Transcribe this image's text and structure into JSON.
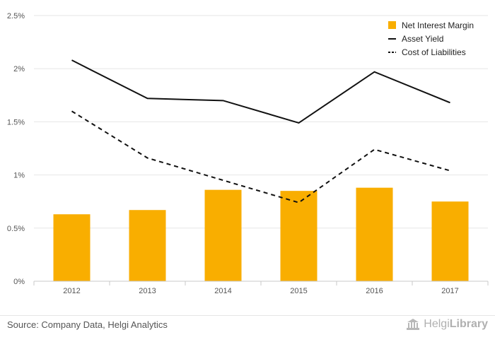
{
  "chart_data": {
    "type": "bar",
    "categories": [
      "2012",
      "2013",
      "2014",
      "2015",
      "2016",
      "2017"
    ],
    "series": [
      {
        "name": "Net Interest Margin",
        "type": "bar",
        "color": "#f9ae00",
        "values": [
          0.63,
          0.67,
          0.86,
          0.85,
          0.88,
          0.75
        ]
      },
      {
        "name": "Asset Yield",
        "type": "line",
        "style": "solid",
        "color": "#111111",
        "values": [
          2.08,
          1.72,
          1.7,
          1.49,
          1.97,
          1.68
        ]
      },
      {
        "name": "Cost of Liabilities",
        "type": "line",
        "style": "dashed",
        "color": "#111111",
        "values": [
          1.6,
          1.16,
          0.95,
          0.74,
          1.24,
          1.04
        ]
      }
    ],
    "yticks": [
      "0%",
      "0.5%",
      "1%",
      "1.5%",
      "2%",
      "2.5%"
    ],
    "ylim": [
      0,
      2.5
    ],
    "ylabel_unit": "%",
    "grid": true,
    "legend_position": "top-right"
  },
  "footer": {
    "source": "Source: Company Data, Helgi Analytics",
    "brand_prefix": "Helgi",
    "brand_suffix": "Library",
    "brand_icon": "library-building-icon"
  }
}
